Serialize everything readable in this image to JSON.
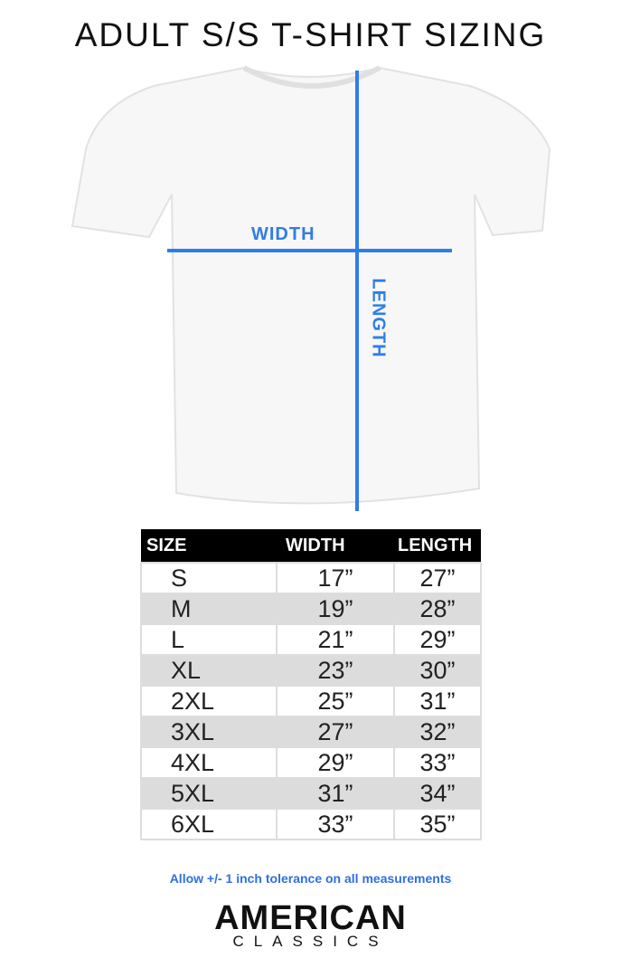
{
  "title": "ADULT S/S T-SHIRT SIZING",
  "diagram": {
    "width_label": "WIDTH",
    "length_label": "LENGTH",
    "line_color": "#2f7de8"
  },
  "table": {
    "headers": [
      "SIZE",
      "WIDTH",
      "LENGTH"
    ],
    "rows": [
      [
        "S",
        "17”",
        "27”"
      ],
      [
        "M",
        "19”",
        "28”"
      ],
      [
        "L",
        "21”",
        "29”"
      ],
      [
        "XL",
        "23”",
        "30”"
      ],
      [
        "2XL",
        "25”",
        "31”"
      ],
      [
        "3XL",
        "27”",
        "32”"
      ],
      [
        "4XL",
        "29”",
        "33”"
      ],
      [
        "5XL",
        "31”",
        "34”"
      ],
      [
        "6XL",
        "33”",
        "35”"
      ]
    ]
  },
  "note": "Allow +/- 1 inch tolerance on all measurements",
  "brand": {
    "line1": "AMERICAN",
    "line2": "CLASSICS"
  }
}
